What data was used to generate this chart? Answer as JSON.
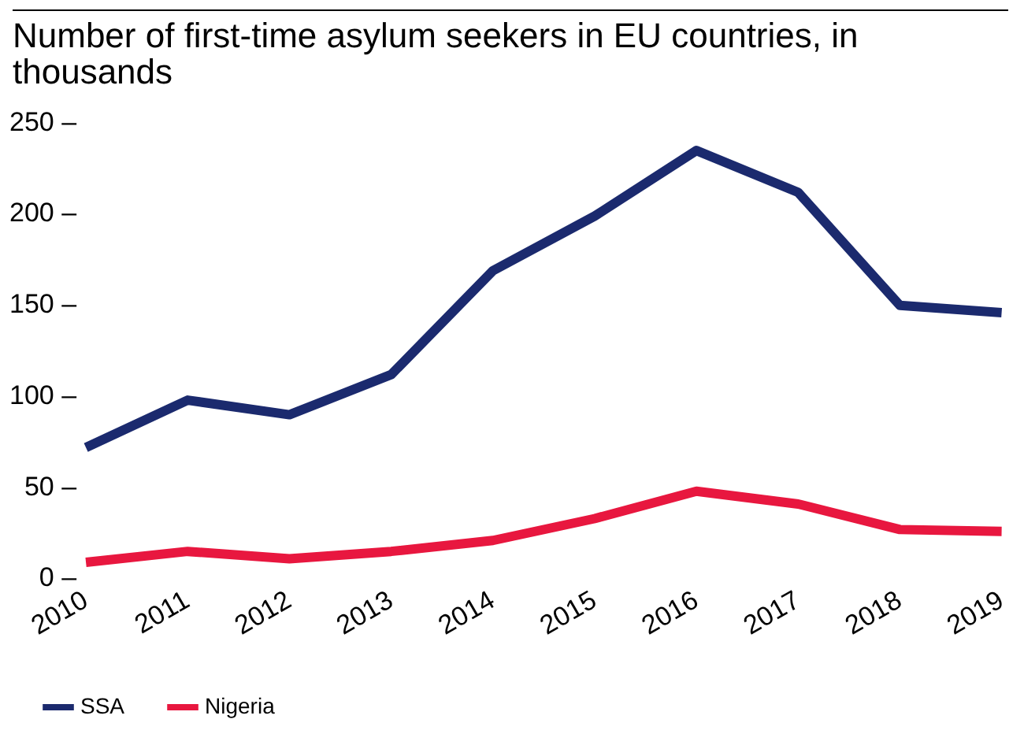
{
  "chart_data": {
    "type": "line",
    "title": "Number of first-time asylum seekers in EU countries, in thousands",
    "categories": [
      "2010",
      "2011",
      "2012",
      "2013",
      "2014",
      "2015",
      "2016",
      "2017",
      "2018",
      "2019"
    ],
    "series": [
      {
        "name": "SSA",
        "color": "#1b2a6e",
        "values": [
          72,
          98,
          90,
          112,
          169,
          199,
          235,
          212,
          150,
          146
        ]
      },
      {
        "name": "Nigeria",
        "color": "#e8173f",
        "values": [
          9,
          15,
          11,
          15,
          21,
          33,
          48,
          41,
          27,
          26
        ]
      }
    ],
    "ylim": [
      0,
      250
    ],
    "yticks": [
      {
        "value": 0,
        "label": "0 –"
      },
      {
        "value": 50,
        "label": "50 –"
      },
      {
        "value": 100,
        "label": "100 –"
      },
      {
        "value": 150,
        "label": "150 –"
      },
      {
        "value": 200,
        "label": "200 –"
      },
      {
        "value": 250,
        "label": "250 –"
      }
    ],
    "grid": false,
    "legend": "bottom left",
    "marker": "none",
    "line_style": "solid"
  }
}
